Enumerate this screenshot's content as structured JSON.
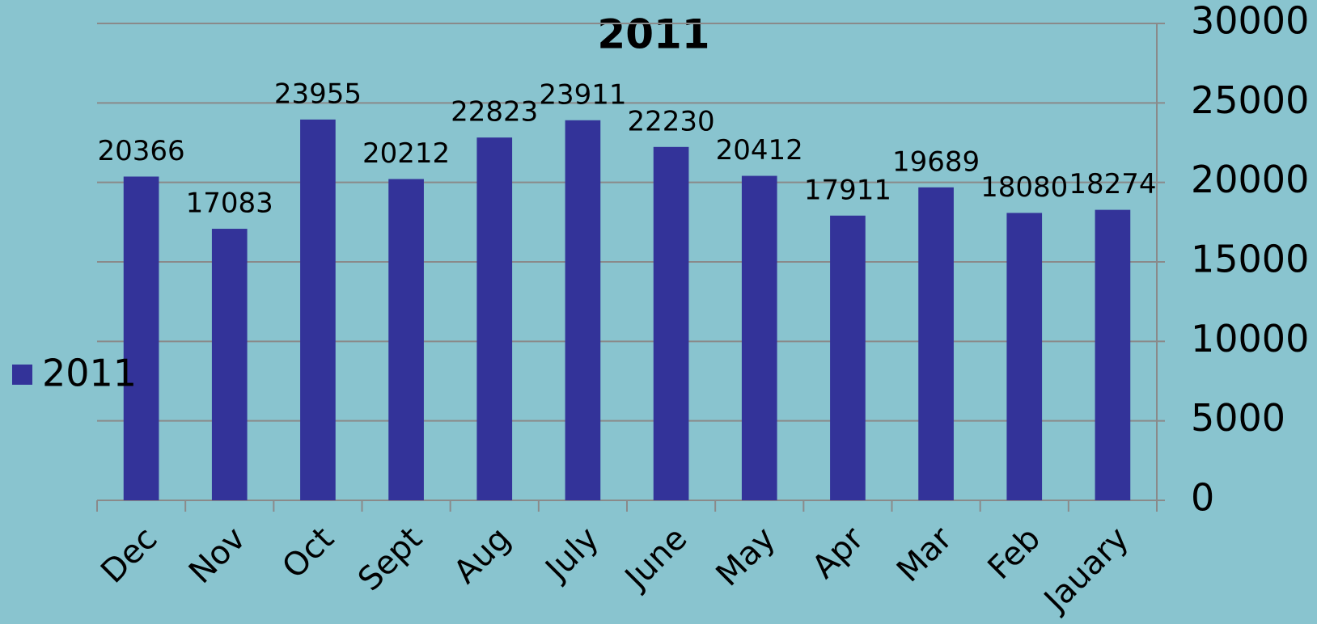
{
  "chart_data": {
    "type": "bar",
    "title": "2011",
    "categories": [
      "Dec",
      "Nov",
      "Oct",
      "Sept",
      "Aug",
      "July",
      "June",
      "May",
      "Apr",
      "Mar",
      "Feb",
      "Jauary"
    ],
    "series": [
      {
        "name": "2011",
        "color": "#333399",
        "values": [
          20366,
          17083,
          23955,
          20212,
          22823,
          23911,
          22230,
          20412,
          17911,
          19689,
          18080,
          18274
        ]
      }
    ],
    "ylim": [
      0,
      30000
    ],
    "yticks": [
      0,
      5000,
      10000,
      15000,
      20000,
      25000,
      30000
    ],
    "y_axis_side": "right",
    "grid": true,
    "legend": "left"
  }
}
